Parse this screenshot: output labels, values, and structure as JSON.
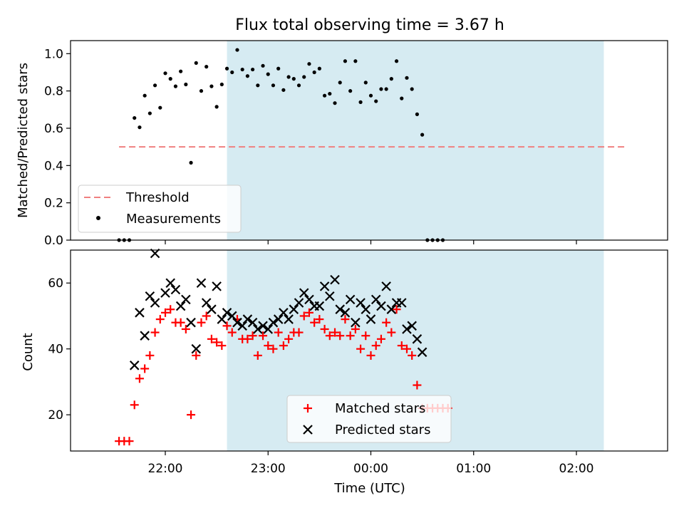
{
  "chart_data": [
    {
      "type": "scatter",
      "title": "Flux total observing time = 3.67 h",
      "xlabel": "",
      "ylabel": "Matched/Predicted stars",
      "ylim": [
        0.0,
        1.07
      ],
      "yticks": [
        "0.0",
        "0.2",
        "0.4",
        "0.6",
        "0.8",
        "1.0"
      ],
      "x_axis": "time (UTC), shared with lower panel",
      "shaded_region": {
        "from": "22:36",
        "to": "02:16",
        "color": "#add8e6"
      },
      "legend_position": "lower-left",
      "threshold": {
        "name": "Threshold",
        "value": 0.5,
        "from": "21:33",
        "to": "02:30",
        "color": "#f08080",
        "style": "dashed"
      },
      "series": [
        {
          "name": "Measurements",
          "color": "#000000",
          "marker": "dot",
          "points": [
            [
              "21:33",
              0.0
            ],
            [
              "21:36",
              0.0
            ],
            [
              "21:39",
              0.0
            ],
            [
              "21:42",
              0.655
            ],
            [
              "21:45",
              0.605
            ],
            [
              "21:48",
              0.775
            ],
            [
              "21:51",
              0.68
            ],
            [
              "21:54",
              0.83
            ],
            [
              "21:57",
              0.71
            ],
            [
              "22:00",
              0.895
            ],
            [
              "22:03",
              0.865
            ],
            [
              "22:06",
              0.825
            ],
            [
              "22:09",
              0.905
            ],
            [
              "22:12",
              0.835
            ],
            [
              "22:15",
              0.415
            ],
            [
              "22:18",
              0.95
            ],
            [
              "22:21",
              0.8
            ],
            [
              "22:24",
              0.93
            ],
            [
              "22:27",
              0.825
            ],
            [
              "22:30",
              0.715
            ],
            [
              "22:33",
              0.835
            ],
            [
              "22:36",
              0.92
            ],
            [
              "22:39",
              0.9
            ],
            [
              "22:42",
              1.02
            ],
            [
              "22:45",
              0.915
            ],
            [
              "22:48",
              0.88
            ],
            [
              "22:51",
              0.915
            ],
            [
              "22:54",
              0.83
            ],
            [
              "22:57",
              0.935
            ],
            [
              "23:00",
              0.89
            ],
            [
              "23:03",
              0.83
            ],
            [
              "23:06",
              0.92
            ],
            [
              "23:09",
              0.805
            ],
            [
              "23:12",
              0.875
            ],
            [
              "23:15",
              0.865
            ],
            [
              "23:18",
              0.83
            ],
            [
              "23:21",
              0.875
            ],
            [
              "23:24",
              0.945
            ],
            [
              "23:27",
              0.9
            ],
            [
              "23:30",
              0.92
            ],
            [
              "23:33",
              0.775
            ],
            [
              "23:36",
              0.785
            ],
            [
              "23:39",
              0.735
            ],
            [
              "23:42",
              0.845
            ],
            [
              "23:45",
              0.96
            ],
            [
              "23:48",
              0.8
            ],
            [
              "23:51",
              0.96
            ],
            [
              "23:54",
              0.74
            ],
            [
              "23:57",
              0.845
            ],
            [
              "00:00",
              0.775
            ],
            [
              "00:03",
              0.745
            ],
            [
              "00:06",
              0.81
            ],
            [
              "00:09",
              0.81
            ],
            [
              "00:12",
              0.865
            ],
            [
              "00:15",
              0.96
            ],
            [
              "00:18",
              0.76
            ],
            [
              "00:21",
              0.87
            ],
            [
              "00:24",
              0.81
            ],
            [
              "00:27",
              0.675
            ],
            [
              "00:30",
              0.565
            ],
            [
              "00:33",
              0.0
            ],
            [
              "00:36",
              0.0
            ],
            [
              "00:39",
              0.0
            ],
            [
              "00:42",
              0.0
            ]
          ]
        }
      ]
    },
    {
      "type": "scatter",
      "title": "",
      "xlabel": "Time (UTC)",
      "ylabel": "Count",
      "ylim": [
        9,
        70
      ],
      "yticks": [
        "20",
        "40",
        "60"
      ],
      "xticks": [
        "22:00",
        "23:00",
        "00:00",
        "01:00",
        "02:00"
      ],
      "shaded_region": {
        "from": "22:36",
        "to": "02:16",
        "color": "#add8e6"
      },
      "legend_position": "lower-center",
      "series": [
        {
          "name": "Matched stars",
          "color": "#ff0000",
          "marker": "plus",
          "points": [
            [
              "21:33",
              12
            ],
            [
              "21:36",
              12
            ],
            [
              "21:39",
              12
            ],
            [
              "21:42",
              23
            ],
            [
              "21:45",
              31
            ],
            [
              "21:48",
              34
            ],
            [
              "21:51",
              38
            ],
            [
              "21:54",
              45
            ],
            [
              "21:57",
              49
            ],
            [
              "22:00",
              51
            ],
            [
              "22:03",
              52
            ],
            [
              "22:06",
              48
            ],
            [
              "22:09",
              48
            ],
            [
              "22:12",
              46
            ],
            [
              "22:15",
              20
            ],
            [
              "22:18",
              38
            ],
            [
              "22:21",
              48
            ],
            [
              "22:24",
              50
            ],
            [
              "22:27",
              43
            ],
            [
              "22:30",
              42
            ],
            [
              "22:33",
              41
            ],
            [
              "22:36",
              47
            ],
            [
              "22:39",
              45
            ],
            [
              "22:42",
              49
            ],
            [
              "22:45",
              43
            ],
            [
              "22:48",
              43
            ],
            [
              "22:51",
              44
            ],
            [
              "22:54",
              38
            ],
            [
              "22:57",
              44
            ],
            [
              "23:00",
              41
            ],
            [
              "23:03",
              40
            ],
            [
              "23:06",
              45
            ],
            [
              "23:09",
              41
            ],
            [
              "23:12",
              43
            ],
            [
              "23:15",
              45
            ],
            [
              "23:18",
              45
            ],
            [
              "23:21",
              50
            ],
            [
              "23:24",
              51
            ],
            [
              "23:27",
              48
            ],
            [
              "23:30",
              49
            ],
            [
              "23:33",
              46
            ],
            [
              "23:36",
              44
            ],
            [
              "23:39",
              45
            ],
            [
              "23:42",
              44
            ],
            [
              "23:45",
              49
            ],
            [
              "23:48",
              44
            ],
            [
              "23:51",
              46
            ],
            [
              "23:54",
              40
            ],
            [
              "23:57",
              44
            ],
            [
              "00:00",
              38
            ],
            [
              "00:03",
              41
            ],
            [
              "00:06",
              43
            ],
            [
              "00:09",
              48
            ],
            [
              "00:12",
              45
            ],
            [
              "00:15",
              52
            ],
            [
              "00:18",
              41
            ],
            [
              "00:21",
              40
            ],
            [
              "00:24",
              38
            ],
            [
              "00:27",
              29
            ],
            [
              "00:30",
              22
            ],
            [
              "00:33",
              22
            ],
            [
              "00:36",
              22
            ],
            [
              "00:39",
              22
            ],
            [
              "00:42",
              22
            ],
            [
              "00:45",
              22
            ]
          ]
        },
        {
          "name": "Predicted stars",
          "color": "#000000",
          "marker": "x",
          "points": [
            [
              "21:54",
              69
            ],
            [
              "21:42",
              35
            ],
            [
              "21:45",
              51
            ],
            [
              "21:48",
              44
            ],
            [
              "21:51",
              56
            ],
            [
              "21:54",
              54
            ],
            [
              "22:00",
              57
            ],
            [
              "22:03",
              60
            ],
            [
              "22:06",
              58
            ],
            [
              "22:09",
              53
            ],
            [
              "22:12",
              55
            ],
            [
              "22:15",
              48
            ],
            [
              "22:18",
              40
            ],
            [
              "22:21",
              60
            ],
            [
              "22:24",
              54
            ],
            [
              "22:27",
              52
            ],
            [
              "22:30",
              59
            ],
            [
              "22:33",
              49
            ],
            [
              "22:36",
              51
            ],
            [
              "22:39",
              50
            ],
            [
              "22:42",
              48
            ],
            [
              "22:45",
              47
            ],
            [
              "22:48",
              49
            ],
            [
              "22:51",
              48
            ],
            [
              "22:54",
              46
            ],
            [
              "22:57",
              47
            ],
            [
              "23:00",
              46
            ],
            [
              "23:03",
              48
            ],
            [
              "23:06",
              49
            ],
            [
              "23:09",
              51
            ],
            [
              "23:12",
              49
            ],
            [
              "23:15",
              52
            ],
            [
              "23:18",
              54
            ],
            [
              "23:21",
              57
            ],
            [
              "23:24",
              55
            ],
            [
              "23:27",
              53
            ],
            [
              "23:30",
              53
            ],
            [
              "23:33",
              59
            ],
            [
              "23:36",
              56
            ],
            [
              "23:39",
              61
            ],
            [
              "23:42",
              52
            ],
            [
              "23:45",
              51
            ],
            [
              "23:48",
              55
            ],
            [
              "23:51",
              48
            ],
            [
              "23:54",
              54
            ],
            [
              "23:57",
              52
            ],
            [
              "00:00",
              49
            ],
            [
              "00:03",
              55
            ],
            [
              "00:06",
              53
            ],
            [
              "00:09",
              59
            ],
            [
              "00:12",
              52
            ],
            [
              "00:15",
              54
            ],
            [
              "00:18",
              54
            ],
            [
              "00:21",
              46
            ],
            [
              "00:24",
              47
            ],
            [
              "00:27",
              43
            ],
            [
              "00:30",
              39
            ]
          ]
        }
      ]
    }
  ]
}
